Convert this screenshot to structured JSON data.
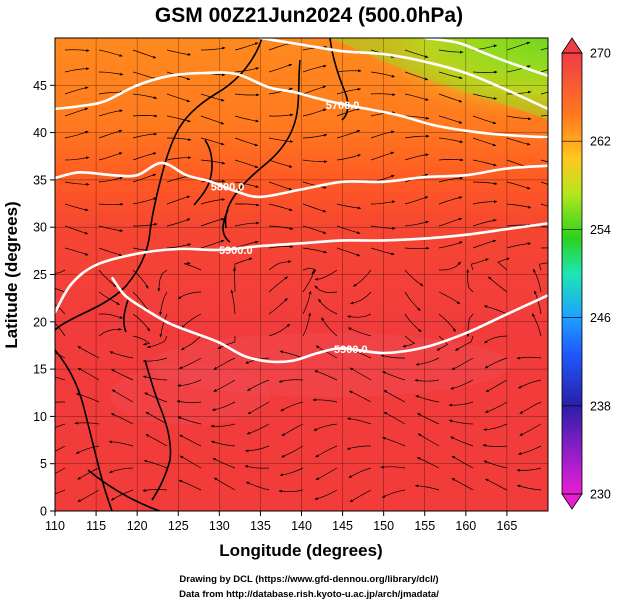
{
  "title": "GSM 00Z21Jun2024 (500.0hPa)",
  "xlabel": "Longitude (degrees)",
  "ylabel": "Latitude  (degrees)",
  "credits": [
    "Drawing by DCL (https://www.gfd-dennou.org/library/dcl/)",
    "Data from http://database.rish.kyoto-u.ac.jp/arch/jmadata/"
  ],
  "chart_data": {
    "type": "heatmap",
    "title": "GSM 00Z21Jun2024 (500.0hPa)",
    "xlabel": "Longitude (degrees)",
    "ylabel": "Latitude  (degrees)",
    "xlim": [
      110,
      170
    ],
    "ylim": [
      0,
      50
    ],
    "x_ticks": [
      110,
      115,
      120,
      125,
      130,
      135,
      140,
      145,
      150,
      155,
      160,
      165
    ],
    "y_ticks": [
      0,
      5,
      10,
      15,
      20,
      25,
      30,
      35,
      40,
      45
    ],
    "grid": true,
    "colorbar": {
      "min": 230,
      "max": 270,
      "ticks": [
        230,
        238,
        246,
        254,
        262,
        270
      ],
      "colors": [
        "#e81ed2",
        "#2a1ea8",
        "#1e8cff",
        "#1ee6b4",
        "#2ad21e",
        "#b4e61e",
        "#ffc81e",
        "#ff781e",
        "#ff3c3c",
        "#f03c46"
      ]
    },
    "contours": [
      {
        "label": "5900.0",
        "points": [
          [
            110,
            21
          ],
          [
            112,
            24
          ],
          [
            115,
            26
          ],
          [
            120,
            27.2
          ],
          [
            125,
            27.7
          ],
          [
            130,
            27.6
          ],
          [
            135,
            28
          ],
          [
            140,
            28.3
          ],
          [
            145,
            28.6
          ],
          [
            150,
            28.6
          ],
          [
            155,
            28.8
          ],
          [
            160,
            29.2
          ],
          [
            165,
            29.8
          ],
          [
            170,
            30.4
          ]
        ]
      },
      {
        "label": "5900.0",
        "points": [
          [
            117,
            24.6
          ],
          [
            118.5,
            22.8
          ],
          [
            121,
            21.3
          ],
          [
            124,
            19.8
          ],
          [
            127,
            18.8
          ],
          [
            130,
            17.8
          ],
          [
            133,
            16.4
          ],
          [
            136,
            15.8
          ],
          [
            139,
            15.9
          ],
          [
            142,
            16.7
          ],
          [
            145,
            17.2
          ],
          [
            150,
            16.7
          ],
          [
            155,
            17.3
          ],
          [
            160,
            18.8
          ],
          [
            165,
            20.8
          ],
          [
            170,
            22.8
          ]
        ]
      },
      {
        "label": "5800.0",
        "points": [
          [
            110,
            35.2
          ],
          [
            113,
            35.8
          ],
          [
            117,
            35.5
          ],
          [
            120,
            35.5
          ],
          [
            123,
            36.8
          ],
          [
            126,
            35.5
          ],
          [
            129,
            34.8
          ],
          [
            132,
            33.8
          ],
          [
            135,
            33.2
          ],
          [
            140,
            34
          ],
          [
            145,
            34.8
          ],
          [
            150,
            34.8
          ],
          [
            155,
            35.3
          ],
          [
            160,
            35.5
          ],
          [
            165,
            36.2
          ],
          [
            170,
            36.5
          ]
        ]
      },
      {
        "label": "5700.0",
        "points": [
          [
            110,
            42.5
          ],
          [
            113,
            42.8
          ],
          [
            116,
            43.3
          ],
          [
            120,
            45
          ],
          [
            124,
            46
          ],
          [
            128,
            46.3
          ],
          [
            132,
            46.2
          ],
          [
            136,
            44.8
          ],
          [
            139,
            44.3
          ],
          [
            142,
            43.6
          ],
          [
            145,
            43
          ],
          [
            148,
            42.5
          ],
          [
            152,
            41.8
          ],
          [
            156,
            40.8
          ],
          [
            160,
            40.2
          ],
          [
            164,
            39.8
          ],
          [
            170,
            39.5
          ]
        ]
      },
      {
        "label": "",
        "points": [
          [
            135,
            50
          ],
          [
            140,
            49.3
          ],
          [
            145,
            48.6
          ],
          [
            150,
            48.3
          ],
          [
            155,
            47.5
          ],
          [
            160,
            46.3
          ],
          [
            165,
            44.5
          ],
          [
            170,
            42.5
          ]
        ]
      },
      {
        "label": "",
        "points": [
          [
            155,
            50
          ],
          [
            159,
            49.5
          ],
          [
            162,
            48.5
          ],
          [
            165,
            47.5
          ],
          [
            170,
            46
          ]
        ]
      }
    ],
    "contour_labels": [
      "5900.0",
      "5900.0",
      "5800.0",
      "5700.0"
    ]
  }
}
